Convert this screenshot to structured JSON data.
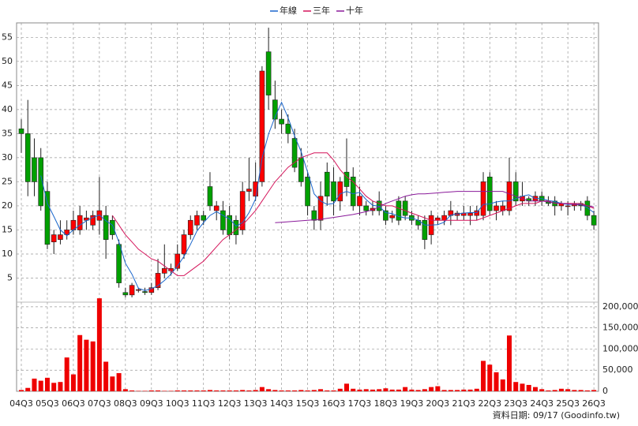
{
  "chart_data": {
    "type": "candlestick",
    "categories": [
      "04Q3",
      null,
      null,
      null,
      "05Q3",
      null,
      null,
      null,
      "06Q3",
      null,
      null,
      null,
      "07Q3",
      null,
      null,
      null,
      "08Q3",
      null,
      null,
      null,
      "09Q3",
      null,
      null,
      null,
      "10Q3",
      null,
      null,
      null,
      "11Q3",
      null,
      null,
      null,
      "12Q3",
      null,
      null,
      null,
      "13Q3",
      null,
      null,
      null,
      "14Q3",
      null,
      null,
      null,
      "15Q3",
      null,
      null,
      null,
      "16Q3",
      null,
      null,
      null,
      "17Q3",
      null,
      null,
      null,
      "18Q3",
      null,
      null,
      null,
      "19Q3",
      null,
      null,
      null,
      "20Q3",
      null,
      null,
      null,
      "21Q3",
      null,
      null,
      null,
      "22Q3",
      null,
      null,
      null,
      "23Q3",
      null,
      null,
      null,
      "24Q3",
      null,
      null,
      null,
      "25Q3",
      null,
      null,
      null,
      "26Q3"
    ],
    "open": [
      36,
      35,
      30,
      30,
      23,
      12.5,
      13,
      14,
      15,
      15,
      17,
      16,
      17,
      18,
      17,
      12,
      2,
      1.5,
      2.5,
      2.2,
      2,
      3,
      6,
      6.5,
      7,
      10,
      14,
      16,
      18,
      24,
      19,
      19,
      18,
      17,
      15,
      23,
      22,
      25,
      52,
      42,
      38,
      37,
      34,
      30,
      26,
      19,
      17,
      27,
      25,
      21,
      27,
      26,
      20,
      20,
      19,
      21,
      19,
      17.5,
      21,
      21,
      18,
      17,
      17,
      14,
      17,
      17,
      18,
      18,
      18,
      18,
      18,
      18,
      26,
      19,
      19,
      19,
      25,
      21,
      21.5,
      21,
      22,
      21,
      21,
      20,
      20,
      20,
      20.5,
      21,
      18
    ],
    "high": [
      38,
      42,
      34,
      32,
      25,
      15,
      17,
      17,
      19,
      20,
      19,
      19,
      26,
      20,
      18,
      13,
      3,
      4,
      3,
      3,
      4,
      9,
      12,
      8,
      12,
      15,
      18,
      19,
      19,
      27,
      21,
      21,
      20,
      18,
      25,
      30,
      29,
      49,
      57,
      46,
      40,
      39,
      36,
      32,
      27,
      20,
      25,
      29,
      28,
      26,
      34,
      28,
      24,
      21,
      21,
      23,
      20,
      19,
      22,
      22,
      19,
      18,
      18,
      19,
      18,
      19,
      21,
      19,
      20,
      20,
      20,
      27,
      27,
      21,
      21,
      30,
      27,
      25,
      22,
      23,
      23,
      22,
      22,
      21,
      21,
      21,
      21,
      22,
      19
    ],
    "low": [
      31,
      22,
      22,
      19,
      11,
      10,
      12,
      13,
      14,
      14,
      15,
      15,
      14,
      9,
      13,
      3,
      1,
      1,
      2,
      1.5,
      1.5,
      2.5,
      5,
      5.5,
      6.5,
      9,
      13,
      15,
      16,
      19,
      17,
      14,
      13,
      12,
      14,
      21,
      21,
      24,
      40,
      36,
      35,
      33,
      27,
      24,
      18,
      15,
      15,
      20,
      18,
      19,
      22,
      19,
      18,
      18,
      18,
      18,
      16,
      16.5,
      16,
      17,
      16,
      15,
      11,
      12,
      16,
      16,
      16,
      17,
      17,
      16,
      17,
      17,
      18,
      17,
      18,
      18,
      20,
      20,
      20,
      20,
      20,
      20,
      18,
      19,
      18,
      19,
      19,
      17,
      15
    ],
    "close": [
      35,
      25,
      25,
      20,
      12,
      14,
      14,
      15,
      17,
      18,
      17.5,
      18,
      19,
      13,
      14,
      4,
      1.5,
      3.5,
      2.6,
      2,
      3,
      6,
      7,
      7,
      10,
      14,
      17,
      18,
      17,
      20,
      20,
      15,
      14,
      14,
      23,
      23.5,
      25,
      48,
      43,
      38,
      37,
      35,
      28,
      25,
      20,
      17,
      22,
      22,
      21,
      25,
      24,
      20,
      22,
      19,
      19.5,
      19,
      17,
      18,
      17,
      18,
      17,
      16,
      13,
      18,
      17.5,
      18,
      19,
      18.5,
      18.5,
      18.5,
      19,
      25,
      19,
      20,
      20,
      25,
      21,
      22,
      21,
      22,
      21,
      20.5,
      20,
      20.5,
      20,
      20.5,
      20,
      18,
      16
    ],
    "up_color": "#ff0000",
    "down_color": "#00a000",
    "volume": [
      3000,
      8000,
      30000,
      25000,
      32000,
      20000,
      22000,
      80000,
      40000,
      133000,
      122000,
      118000,
      220000,
      70000,
      35000,
      43000,
      5000,
      2000,
      1000,
      1000,
      2000,
      2000,
      1000,
      1000,
      2000,
      2000,
      2000,
      2000,
      2000,
      3000,
      2000,
      2000,
      2000,
      2000,
      3000,
      2000,
      3000,
      10000,
      5000,
      3000,
      2000,
      2000,
      2000,
      3000,
      2000,
      3000,
      5000,
      2000,
      2000,
      6000,
      18000,
      6000,
      4000,
      5000,
      4000,
      5000,
      7000,
      4000,
      4000,
      10000,
      4000,
      3000,
      5000,
      10000,
      12000,
      3000,
      3000,
      3000,
      4000,
      4000,
      6000,
      72000,
      63000,
      45000,
      28000,
      132000,
      22000,
      18000,
      15000,
      10000,
      5000,
      2000,
      3000,
      6000,
      5000,
      3000,
      3000,
      2000,
      3000
    ],
    "volume_color": "#ee0000",
    "series": [
      {
        "name": "年線",
        "color": "#1a66cc",
        "values": [
          null,
          null,
          null,
          26.3,
          20.5,
          17.8,
          15,
          13.8,
          15,
          16,
          16.9,
          17.6,
          18.1,
          16.9,
          16,
          12.5,
          8.1,
          5.8,
          2.9,
          2.4,
          2.8,
          3.4,
          4.5,
          5.8,
          7.5,
          9.5,
          12,
          14.8,
          16.5,
          18,
          18.8,
          18,
          17.3,
          15.8,
          16.5,
          18.6,
          21.4,
          29.9,
          34.9,
          38.5,
          41.5,
          38.3,
          34.5,
          31.3,
          27,
          22.5,
          21,
          20.3,
          20.5,
          22.5,
          23,
          22.5,
          22.8,
          21.3,
          20.1,
          19.9,
          18.6,
          18.4,
          17.8,
          17.5,
          17.5,
          17,
          16,
          16,
          16.1,
          16.6,
          18.1,
          18.3,
          18.5,
          18.6,
          18.6,
          20.3,
          20.4,
          20.8,
          21,
          21,
          21.5,
          22,
          22.3,
          21.5,
          21.5,
          21.1,
          20.9,
          20.5,
          20.3,
          20.3,
          20.3,
          19.6,
          18.6
        ]
      },
      {
        "name": "三年",
        "color": "#d4145a",
        "values": [
          null,
          null,
          null,
          null,
          null,
          null,
          null,
          null,
          null,
          null,
          null,
          null,
          null,
          null,
          18,
          16,
          14,
          12.5,
          11,
          10,
          9,
          8.5,
          7.5,
          6.5,
          5.5,
          5.5,
          6.5,
          7.5,
          8.5,
          10,
          11.5,
          13,
          14,
          15,
          16,
          17.5,
          19,
          21,
          23,
          25,
          26.5,
          28,
          29,
          30,
          30.5,
          31,
          31,
          31,
          29.5,
          27.5,
          26,
          25,
          23.5,
          22,
          21,
          20.5,
          20,
          20,
          19.5,
          19,
          18.5,
          18,
          17.5,
          17,
          17,
          17,
          17,
          17,
          17,
          17,
          17,
          17.5,
          18,
          18.5,
          19,
          19.5,
          20,
          20.5,
          20.5,
          20.5,
          21,
          21,
          20.5,
          20.5,
          20.5,
          20.5,
          20.5,
          20,
          19.5
        ]
      },
      {
        "name": "十年",
        "color": "#8a1a9a",
        "values": [
          null,
          null,
          null,
          null,
          null,
          null,
          null,
          null,
          null,
          null,
          null,
          null,
          null,
          null,
          null,
          null,
          null,
          null,
          null,
          null,
          null,
          null,
          null,
          null,
          null,
          null,
          null,
          null,
          null,
          null,
          null,
          null,
          null,
          null,
          null,
          null,
          null,
          null,
          null,
          16.5,
          16.6,
          16.7,
          16.8,
          16.9,
          17,
          17.1,
          17.2,
          17.4,
          17.6,
          17.8,
          18,
          18.2,
          18.5,
          18.8,
          19.2,
          19.8,
          20.5,
          21,
          21.5,
          22,
          22.3,
          22.5,
          22.5,
          22.6,
          22.7,
          22.8,
          22.9,
          23,
          23,
          23,
          23,
          23,
          23,
          23,
          23,
          22.5,
          22,
          21.5,
          21,
          21,
          21,
          20.8,
          20.6,
          20.5,
          20.4,
          20.3,
          20.2,
          20,
          19.8
        ]
      }
    ],
    "ylim": [
      0,
      58
    ],
    "yticks": [
      5,
      10,
      15,
      20,
      25,
      30,
      35,
      40,
      45,
      50,
      55
    ],
    "y2lim": [
      0,
      224000
    ],
    "y2ticks": [
      0,
      {
        "value": 50000,
        "label": "50,000"
      },
      {
        "value": 100000,
        "label": "100,000"
      },
      {
        "value": 150000,
        "label": "150,000"
      },
      {
        "value": 200000,
        "label": "200,000"
      }
    ],
    "grid": true,
    "footer": "資料日期: 09/17 (Goodinfo.tw)"
  }
}
